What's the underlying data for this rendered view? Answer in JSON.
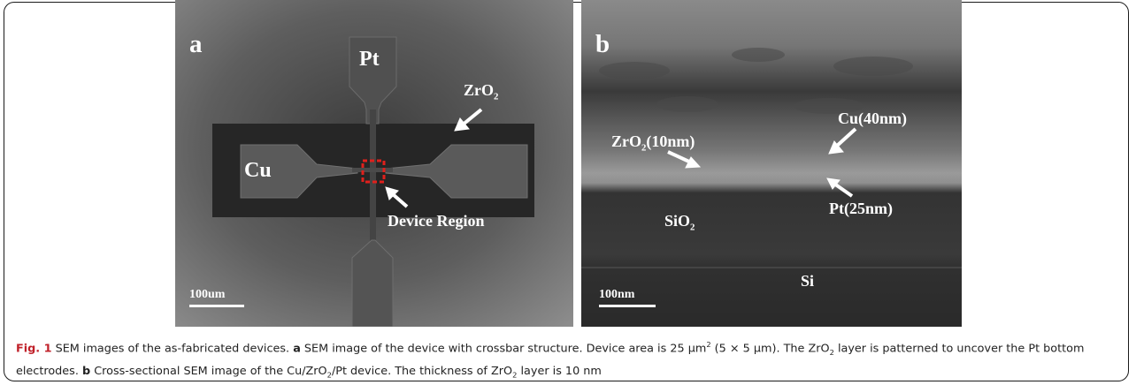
{
  "panel_a": {
    "panel_letter": "a",
    "label_pt": "Pt",
    "label_cu": "Cu",
    "label_zro2_base": "ZrO",
    "label_zro2_sub": "2",
    "label_device_region": "Device Region",
    "scale_bar": "100um"
  },
  "panel_b": {
    "panel_letter": "b",
    "label_cu_thickness": "Cu(40nm)",
    "label_zro2_base": "ZrO",
    "label_zro2_sub": "2",
    "label_zro2_thickness": "(10nm)",
    "label_pt_thickness": "Pt(25nm)",
    "label_sio2_base": "SiO",
    "label_sio2_sub": "2",
    "label_si": "Si",
    "scale_bar": "100nm"
  },
  "caption": {
    "fig_number": "Fig. 1",
    "title": " SEM images of the as-fabricated devices. ",
    "a_letter": "a",
    "a_text_1": " SEM image of the device with crossbar structure. Device area is 25 µm",
    "a_sup": "2",
    "a_text_2": " (5 × 5 µm). The ZrO",
    "a_sub": "2",
    "a_text_3": " layer is patterned to uncover the Pt bottom electrodes. ",
    "b_letter": "b",
    "b_text_1": " Cross-sectional SEM image of the Cu/ZrO",
    "b_sub_1": "2",
    "b_text_2": "/Pt device. The thickness of ZrO",
    "b_sub_2": "2",
    "b_text_3": " layer is 10 nm"
  },
  "colors": {
    "fig_number": "#c0212a",
    "device_region_box": "#e0201c",
    "label_text": "#ffffff"
  }
}
